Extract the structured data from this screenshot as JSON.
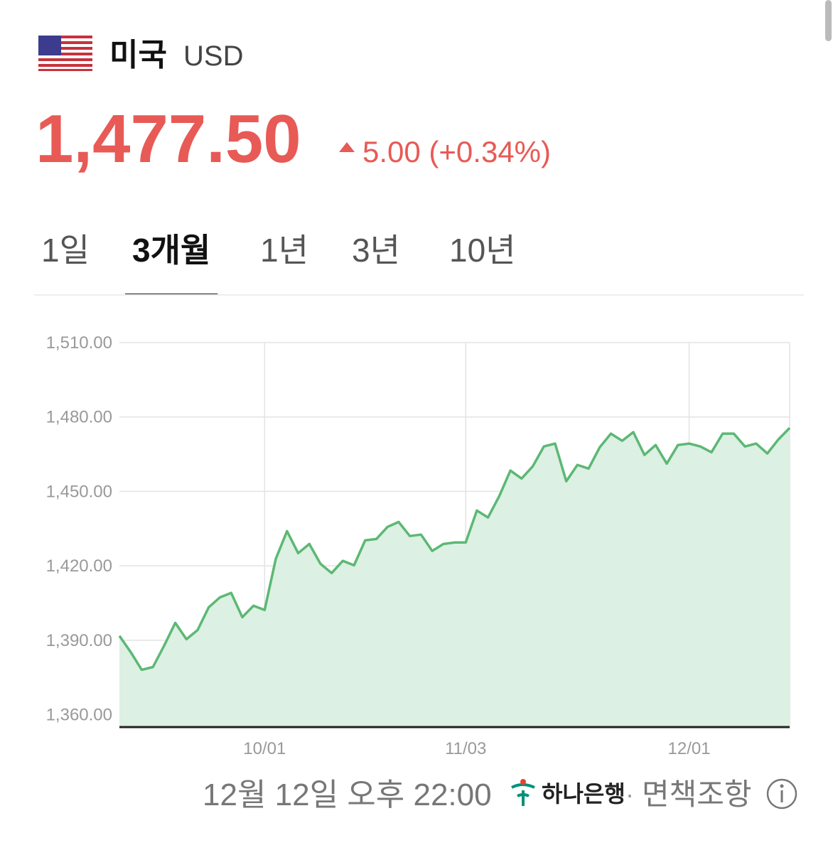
{
  "header": {
    "country": "미국",
    "currency": "USD"
  },
  "price": {
    "value": "1,477.50",
    "change": "5.00 (+0.34%)"
  },
  "tabs": {
    "items": [
      "1일",
      "3개월",
      "1년",
      "3년",
      "10년"
    ],
    "selected": 1
  },
  "chart_data": {
    "type": "area",
    "categories": [
      null,
      null,
      null,
      null,
      null,
      null,
      null,
      null,
      null,
      null,
      null,
      null,
      null,
      "10/01",
      null,
      null,
      null,
      null,
      null,
      null,
      null,
      null,
      null,
      null,
      null,
      null,
      null,
      null,
      null,
      null,
      null,
      "11/03",
      null,
      null,
      null,
      null,
      null,
      null,
      null,
      null,
      null,
      null,
      null,
      null,
      null,
      null,
      null,
      null,
      null,
      null,
      null,
      "12/01",
      null,
      null,
      null,
      null,
      null,
      null,
      null,
      null,
      null
    ],
    "values": [
      1391.8,
      1385.3,
      1378.1,
      1379.2,
      1387.8,
      1397.0,
      1390.4,
      1394.1,
      1403.3,
      1407.3,
      1409.1,
      1399.3,
      1403.9,
      1402.2,
      1422.8,
      1434.0,
      1425.1,
      1428.8,
      1420.8,
      1417.1,
      1422.0,
      1420.2,
      1430.3,
      1430.8,
      1435.7,
      1437.7,
      1432.0,
      1432.6,
      1426.0,
      1428.8,
      1429.4,
      1429.4,
      1442.3,
      1439.5,
      1448.1,
      1458.4,
      1455.2,
      1460.1,
      1468.1,
      1469.3,
      1454.1,
      1460.7,
      1459.2,
      1467.8,
      1473.3,
      1470.4,
      1473.9,
      1464.7,
      1468.7,
      1461.2,
      1468.7,
      1469.3,
      1468.1,
      1465.8,
      1473.3,
      1473.3,
      1468.1,
      1469.3,
      1465.3,
      1471.0,
      1475.6
    ],
    "color": "#5cb874",
    "fill_color": "#dcf0e3",
    "ylim": [
      1355,
      1510
    ],
    "yticks": [
      {
        "value": 1360,
        "label": "1,360.00"
      },
      {
        "value": 1390,
        "label": "1,390.00"
      },
      {
        "value": 1420,
        "label": "1,420.00"
      },
      {
        "value": 1450,
        "label": "1,450.00"
      },
      {
        "value": 1480,
        "label": "1,480.00"
      },
      {
        "value": 1510,
        "label": "1,510.00"
      }
    ],
    "grid": true
  },
  "footer": {
    "timestamp": "12월 12일 오후 22:00",
    "bank": "하나은행",
    "separator": "·",
    "disclaimer": "면책조항"
  }
}
